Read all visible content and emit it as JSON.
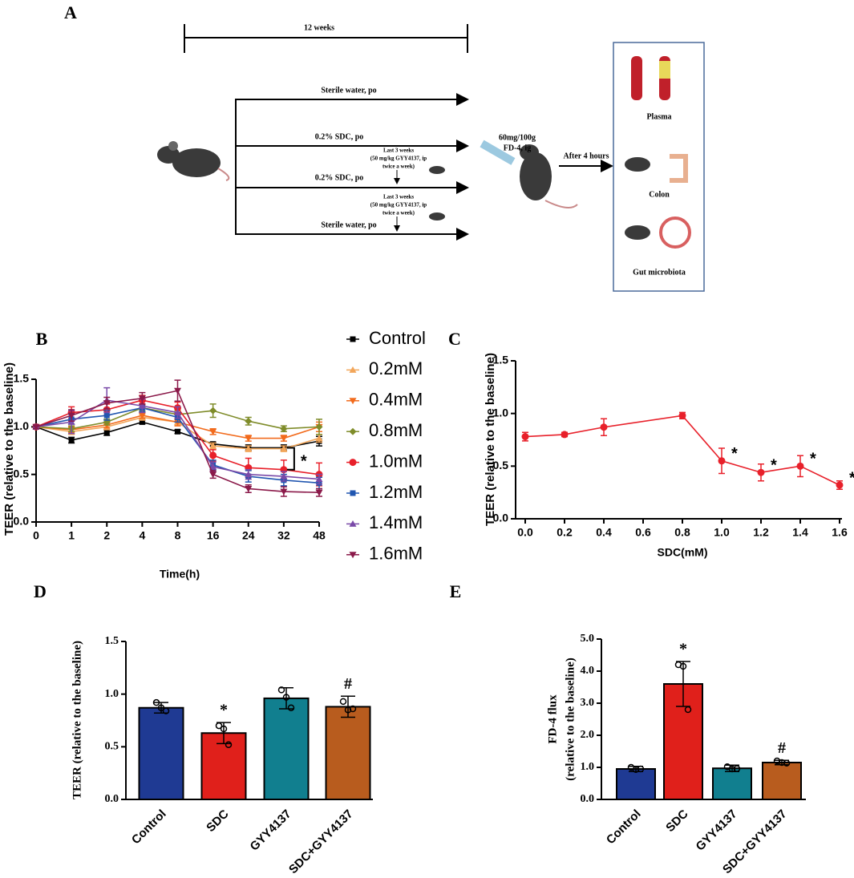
{
  "diagram": {
    "label": "A",
    "duration": "12 weeks",
    "groups": [
      "Sterile water, po",
      "0.2% SDC, po",
      "0.2% SDC, po",
      "Sterile water, po"
    ],
    "treatment_notes": [
      [
        "Last 3 weeks",
        "(50 mg/kg GYY4137, ip",
        "twice a week)"
      ],
      [
        "Last 3 weeks",
        "(50 mg/kg GYY4137, ip",
        "twice a week)"
      ]
    ],
    "gavage": [
      "60mg/100g",
      "FD-4, ig"
    ],
    "wait": "After 4 hours",
    "samples": [
      "Plasma",
      "Colon",
      "Gut microbiota"
    ]
  },
  "chart_data": [
    {
      "type": "line",
      "panel": "B",
      "xlabel": "Time(h)",
      "ylabel": "TEER (relative to the baseline)",
      "categories": [
        "0",
        "1",
        "2",
        "4",
        "8",
        "16",
        "24",
        "32",
        "48"
      ],
      "ylim": [
        0,
        1.5
      ],
      "yticks": [
        {
          "value": 0,
          "label": "0.0"
        },
        0.5,
        {
          "value": 1,
          "label": "1.0"
        },
        1.5
      ],
      "annotation": "*",
      "series": [
        {
          "name": "Control",
          "color": "#000000",
          "marker": "square",
          "values": [
            1.0,
            0.86,
            0.94,
            1.05,
            0.95,
            0.82,
            0.78,
            0.78,
            0.85
          ],
          "errors": [
            0.02,
            0.03,
            0.03,
            0.02,
            0.02,
            0.02,
            0.03,
            0.03,
            0.05
          ]
        },
        {
          "name": "0.2mM",
          "color": "#f2a65a",
          "marker": "triangle-up",
          "values": [
            1.0,
            0.95,
            1.0,
            1.1,
            1.05,
            0.8,
            0.77,
            0.77,
            0.88
          ],
          "errors": [
            0.02,
            0.03,
            0.03,
            0.03,
            0.03,
            0.03,
            0.03,
            0.03,
            0.04
          ]
        },
        {
          "name": "0.4mM",
          "color": "#f26b1d",
          "marker": "triangle-down",
          "values": [
            1.0,
            0.97,
            1.02,
            1.12,
            1.05,
            0.95,
            0.88,
            0.88,
            1.0
          ],
          "errors": [
            0.02,
            0.03,
            0.03,
            0.03,
            0.04,
            0.03,
            0.03,
            0.03,
            0.05
          ]
        },
        {
          "name": "0.8mM",
          "color": "#7f8c2a",
          "marker": "diamond",
          "values": [
            1.0,
            0.98,
            1.05,
            1.2,
            1.13,
            1.17,
            1.06,
            0.98,
            1.0
          ],
          "errors": [
            0.02,
            0.03,
            0.03,
            0.03,
            0.04,
            0.07,
            0.04,
            0.03,
            0.08
          ]
        },
        {
          "name": "1.0mM",
          "color": "#e8202a",
          "marker": "circle",
          "values": [
            1.0,
            1.15,
            1.18,
            1.28,
            1.2,
            0.7,
            0.57,
            0.55,
            0.5
          ],
          "errors": [
            0.02,
            0.06,
            0.06,
            0.05,
            0.06,
            0.06,
            0.1,
            0.1,
            0.12
          ]
        },
        {
          "name": "1.2mM",
          "color": "#2156b0",
          "marker": "square",
          "values": [
            1.0,
            1.08,
            1.12,
            1.2,
            1.1,
            0.6,
            0.48,
            0.44,
            0.41
          ],
          "errors": [
            0.02,
            0.05,
            0.05,
            0.04,
            0.05,
            0.05,
            0.06,
            0.06,
            0.06
          ]
        },
        {
          "name": "1.4mM",
          "color": "#7a4aa8",
          "marker": "triangle-up",
          "values": [
            1.0,
            1.05,
            1.28,
            1.22,
            1.15,
            0.58,
            0.5,
            0.48,
            0.45
          ],
          "errors": [
            0.02,
            0.12,
            0.13,
            0.07,
            0.06,
            0.05,
            0.05,
            0.05,
            0.05
          ]
        },
        {
          "name": "1.6mM",
          "color": "#8b1a4a",
          "marker": "triangle-down",
          "values": [
            1.0,
            1.12,
            1.25,
            1.3,
            1.38,
            0.5,
            0.35,
            0.32,
            0.31
          ],
          "errors": [
            0.02,
            0.06,
            0.06,
            0.06,
            0.11,
            0.04,
            0.04,
            0.05,
            0.04
          ]
        }
      ]
    },
    {
      "type": "line",
      "panel": "C",
      "xlabel": "SDC(mM)",
      "ylabel": "TEER (relative to the baseline)",
      "x": [
        0,
        0.2,
        0.4,
        0.8,
        1.0,
        1.2,
        1.4,
        1.6
      ],
      "values": [
        0.78,
        0.8,
        0.87,
        0.98,
        0.55,
        0.44,
        0.5,
        0.32
      ],
      "errors": [
        0.04,
        0.02,
        0.08,
        0.03,
        0.12,
        0.08,
        0.1,
        0.04
      ],
      "annotations": [
        null,
        null,
        null,
        null,
        "*",
        "*",
        "*",
        "*"
      ],
      "color": "#e8202a",
      "marker": "circle",
      "xlim": [
        0,
        1.6
      ],
      "xticks": [
        {
          "value": 0,
          "label": "0.0"
        },
        0.2,
        0.4,
        0.6,
        0.8,
        {
          "value": 1,
          "label": "1.0"
        },
        1.2,
        1.4,
        1.6
      ],
      "ylim": [
        0,
        1.5
      ],
      "yticks": [
        {
          "value": 0,
          "label": "0.0"
        },
        0.5,
        {
          "value": 1,
          "label": "1.0"
        },
        1.5
      ]
    },
    {
      "type": "bar",
      "panel": "D",
      "ylabel": [
        "TEER (relative to the baseline)"
      ],
      "categories": [
        "Control",
        "SDC",
        "GYY4137",
        "SDC+GYY4137"
      ],
      "values": [
        0.87,
        0.63,
        0.96,
        0.88
      ],
      "errors": [
        0.05,
        0.1,
        0.1,
        0.1
      ],
      "points": [
        [
          0.92,
          0.87,
          0.84
        ],
        [
          0.7,
          0.67,
          0.52
        ],
        [
          1.04,
          0.97,
          0.87
        ],
        [
          0.93,
          0.85,
          0.86
        ]
      ],
      "annotations": [
        null,
        "*",
        null,
        "#"
      ],
      "colors": [
        "#1f3a93",
        "#e0201b",
        "#117f8f",
        "#b85c1e"
      ],
      "ylim": [
        0,
        1.5
      ],
      "yticks": [
        {
          "value": 0,
          "label": "0.0"
        },
        0.5,
        {
          "value": 1,
          "label": "1.0"
        },
        1.5
      ]
    },
    {
      "type": "bar",
      "panel": "E",
      "ylabel": [
        "FD-4 flux",
        "(relative to the baseline)"
      ],
      "categories": [
        "Control",
        "SDC",
        "GYY4137",
        "SDC+GYY4137"
      ],
      "values": [
        0.95,
        3.6,
        0.97,
        1.15
      ],
      "errors": [
        0.08,
        0.7,
        0.1,
        0.07
      ],
      "points": [
        [
          1.0,
          0.93,
          0.95
        ],
        [
          4.2,
          4.15,
          2.8
        ],
        [
          1.02,
          0.95,
          0.96
        ],
        [
          1.2,
          1.15,
          1.13
        ]
      ],
      "annotations": [
        null,
        "*",
        null,
        "#"
      ],
      "colors": [
        "#1f3a93",
        "#e0201b",
        "#117f8f",
        "#b85c1e"
      ],
      "ylim": [
        0,
        5
      ],
      "yticks": [
        {
          "value": 0,
          "label": "0.0"
        },
        {
          "value": 1,
          "label": "1.0"
        },
        {
          "value": 2,
          "label": "2.0"
        },
        {
          "value": 3,
          "label": "3.0"
        },
        {
          "value": 4,
          "label": "4.0"
        },
        {
          "value": 5,
          "label": "5.0"
        }
      ]
    }
  ]
}
